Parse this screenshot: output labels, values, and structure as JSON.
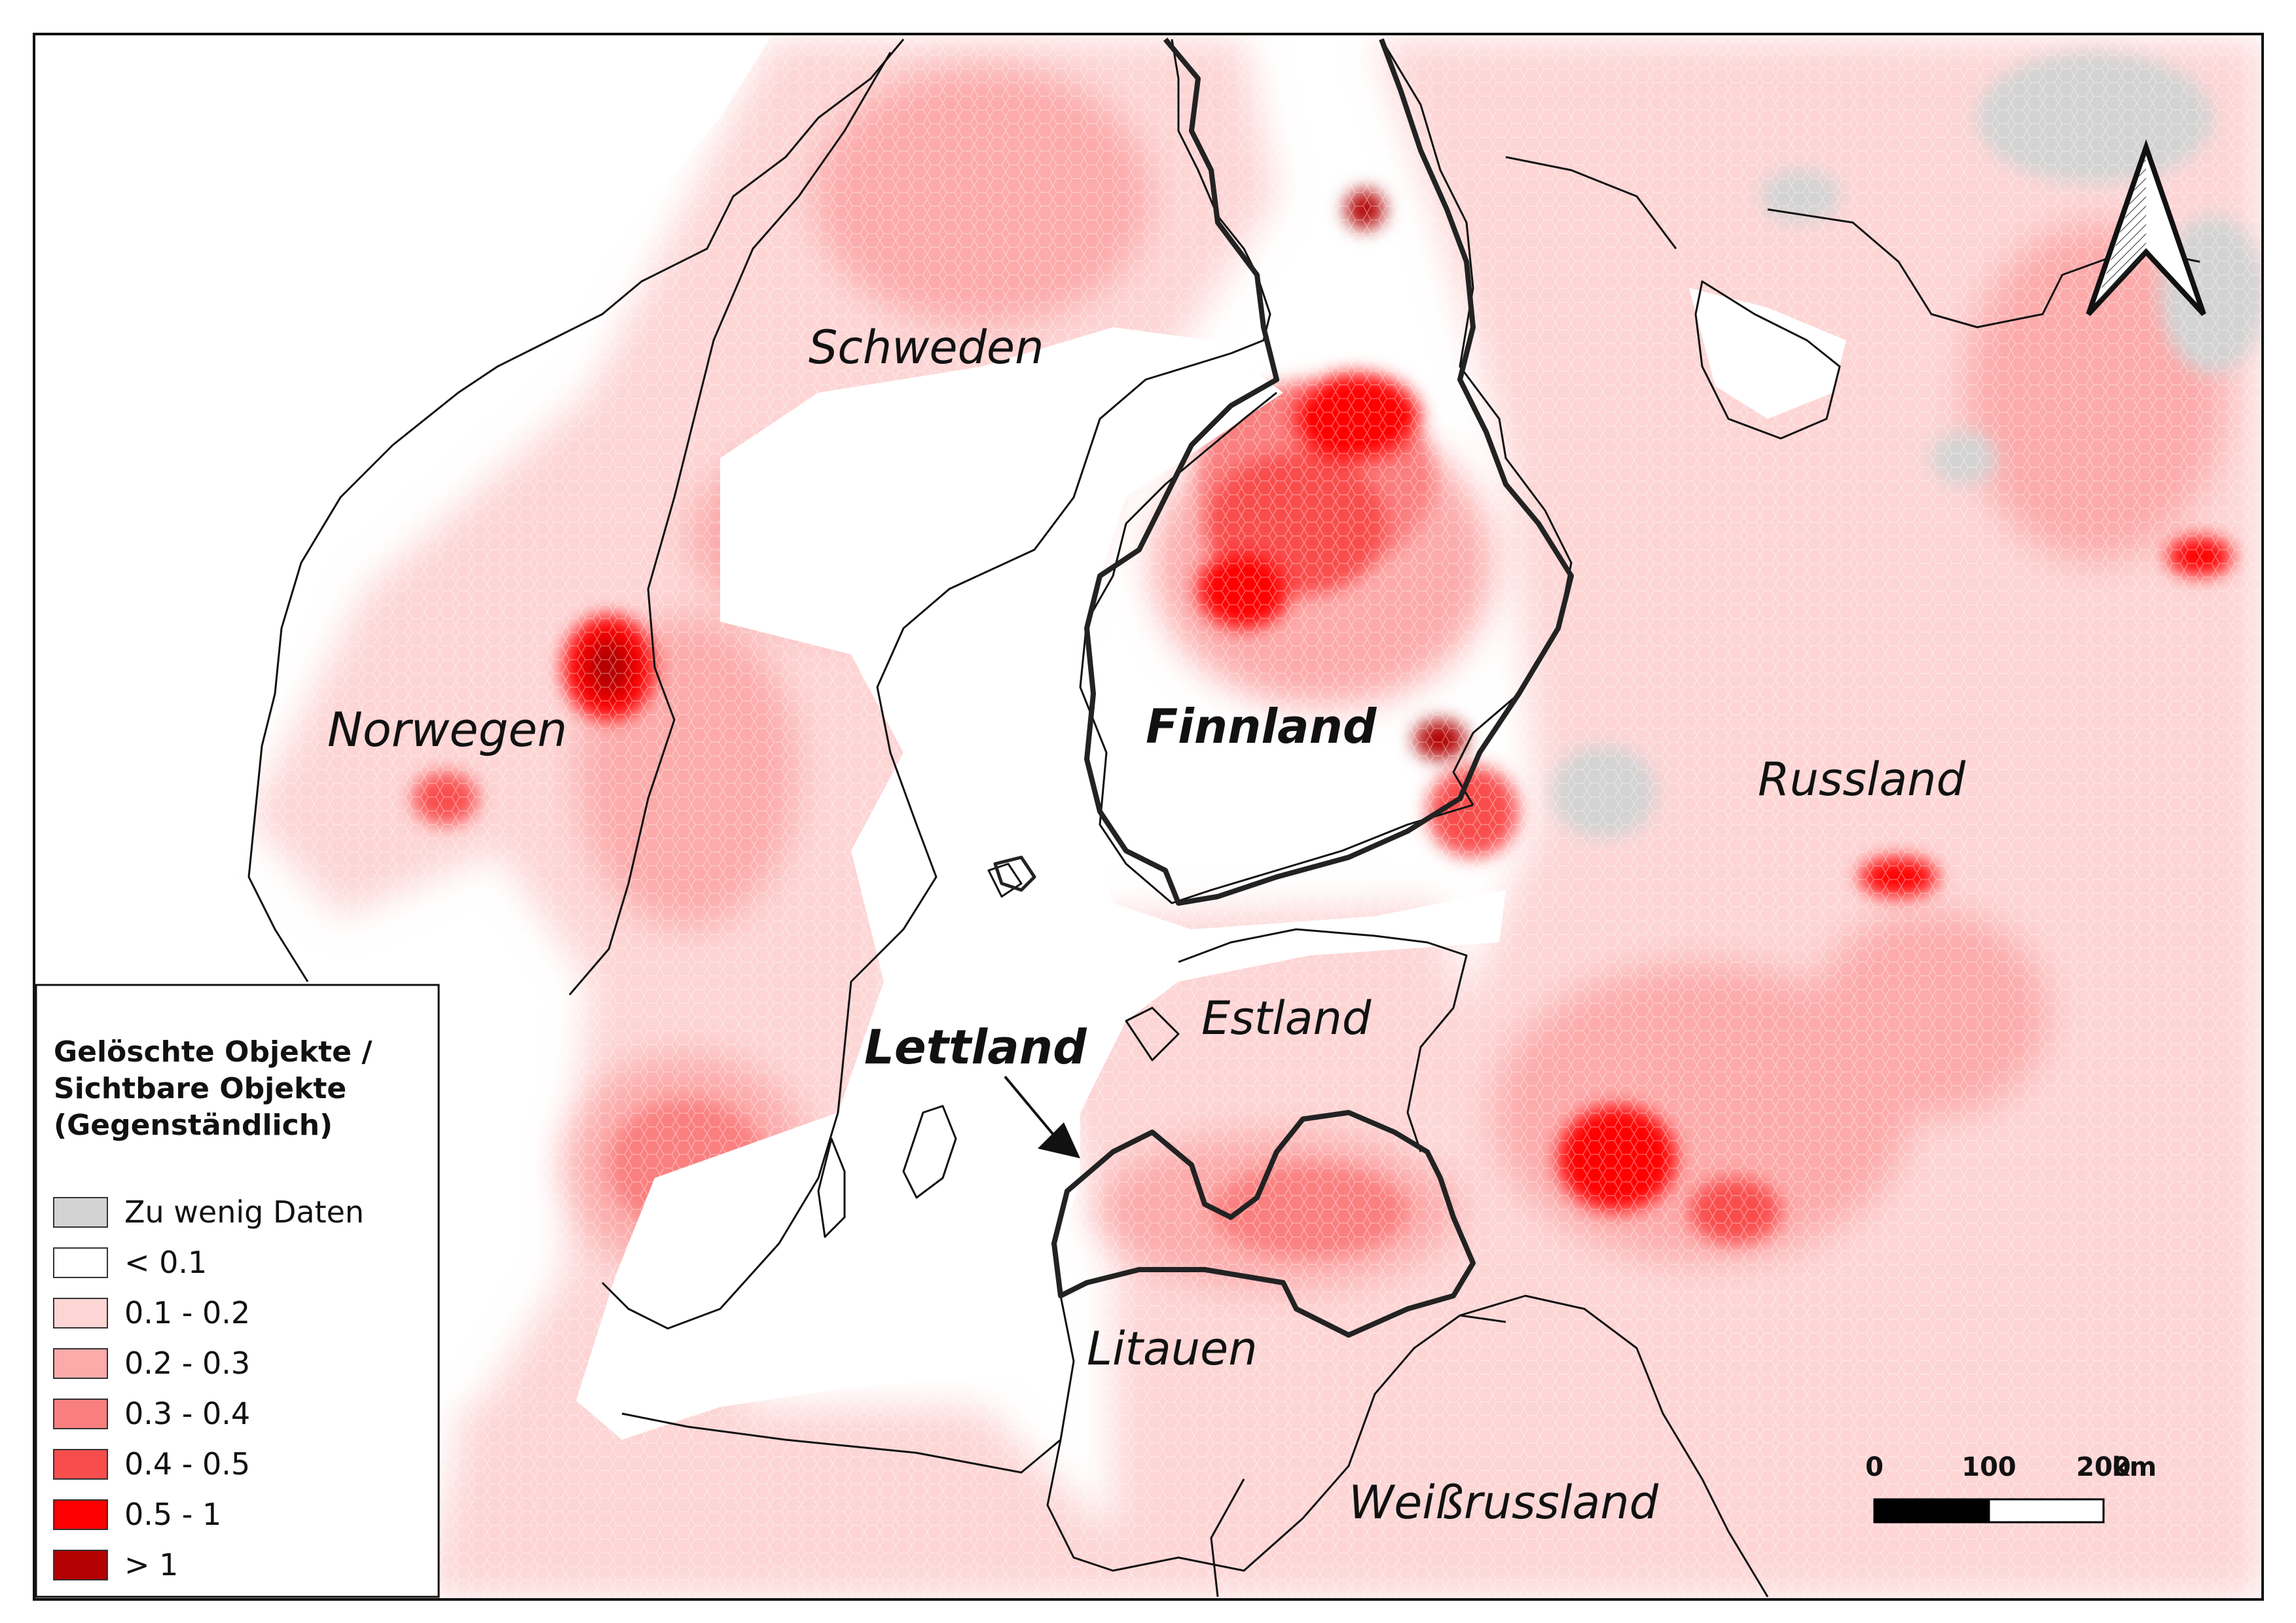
{
  "map": {
    "country_labels": [
      {
        "id": "schweden",
        "text": "Schweden",
        "bold": false
      },
      {
        "id": "norwegen",
        "text": "Norwegen",
        "bold": false
      },
      {
        "id": "finnland",
        "text": "Finnland",
        "bold": true
      },
      {
        "id": "russland",
        "text": "Russland",
        "bold": false
      },
      {
        "id": "estland",
        "text": "Estland",
        "bold": false
      },
      {
        "id": "lettland",
        "text": "Lettland",
        "bold": true
      },
      {
        "id": "litauen",
        "text": "Litauen",
        "bold": false
      },
      {
        "id": "weissrussland",
        "text": "Weißrussland",
        "bold": false
      }
    ]
  },
  "legend": {
    "title_lines": [
      "Gelöschte Objekte /",
      "Sichtbare Objekte",
      "(Gegenständlich)"
    ],
    "items": [
      {
        "label": "Zu wenig Daten",
        "color": "#d3d3d3"
      },
      {
        "label": "< 0.1",
        "color": "#ffffff"
      },
      {
        "label": "0.1 - 0.2",
        "color": "#fdd5d5"
      },
      {
        "label": "0.2 - 0.3",
        "color": "#fcaaaa"
      },
      {
        "label": "0.3 - 0.4",
        "color": "#fa7f7f"
      },
      {
        "label": "0.4 - 0.5",
        "color": "#f94d4d"
      },
      {
        "label": "0.5 - 1",
        "color": "#ff0000"
      },
      {
        "label": "> 1",
        "color": "#b30000"
      }
    ]
  },
  "scale_bar": {
    "ticks": [
      "0",
      "100",
      "200"
    ],
    "unit": "km"
  },
  "north_arrow": {
    "icon": "north-arrow-icon"
  }
}
